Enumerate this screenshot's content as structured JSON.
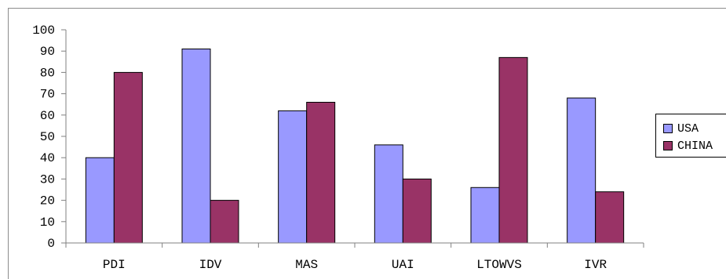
{
  "chart_data": {
    "type": "bar",
    "title": "",
    "xlabel": "",
    "ylabel": "",
    "categories": [
      "PDI",
      "IDV",
      "MAS",
      "UAI",
      "LTOWVS",
      "IVR"
    ],
    "series": [
      {
        "name": "USA",
        "color": "#9999ff",
        "values": [
          40,
          91,
          62,
          46,
          26,
          68
        ]
      },
      {
        "name": "CHINA",
        "color": "#993366",
        "values": [
          80,
          20,
          66,
          30,
          87,
          24
        ]
      }
    ],
    "ylim": [
      0,
      100
    ],
    "yticks": [
      "0",
      "10",
      "20",
      "30",
      "40",
      "50",
      "60",
      "70",
      "80",
      "90",
      "100"
    ],
    "grid": false,
    "legend_position": "right"
  }
}
